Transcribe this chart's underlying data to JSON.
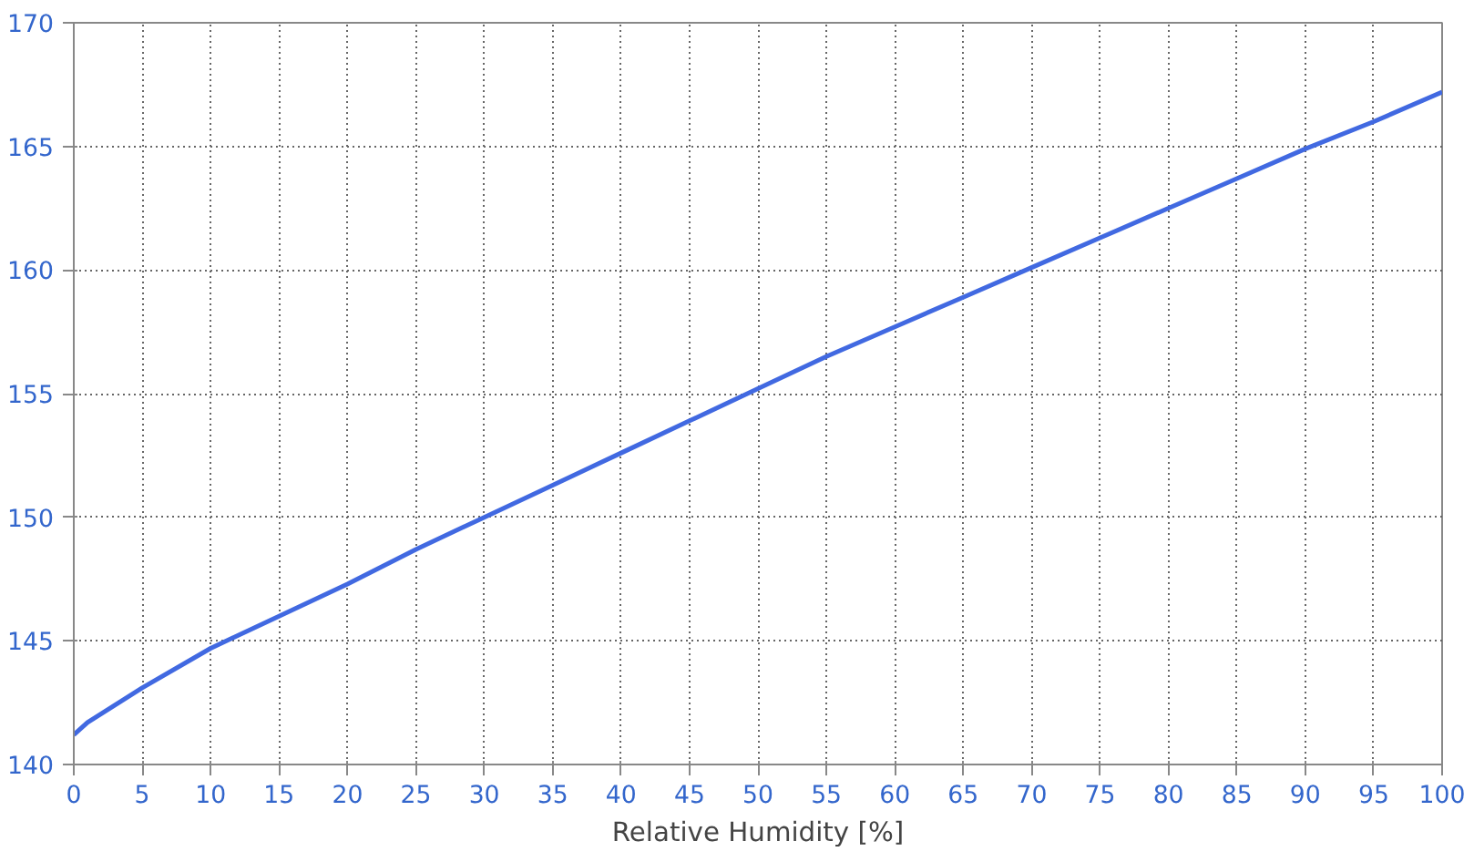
{
  "chart_data": {
    "type": "line",
    "xlabel": "Relative Humidity [%]",
    "x": [
      0,
      1,
      3,
      5,
      10,
      15,
      20,
      25,
      30,
      35,
      40,
      45,
      50,
      55,
      60,
      65,
      70,
      75,
      80,
      85,
      90,
      95,
      100
    ],
    "series": [
      {
        "color": "#4169e1",
        "values": [
          141.2,
          141.7,
          142.4,
          143.1,
          144.7,
          146.0,
          147.3,
          148.7,
          150.0,
          151.3,
          152.6,
          153.9,
          155.2,
          156.5,
          157.7,
          158.9,
          160.1,
          161.3,
          162.5,
          163.7,
          164.9,
          166.0,
          167.2
        ]
      }
    ],
    "xlim": [
      0,
      100
    ],
    "ylim": [
      140,
      170
    ],
    "xticks": [
      0,
      5,
      10,
      15,
      20,
      25,
      30,
      35,
      40,
      45,
      50,
      55,
      60,
      65,
      70,
      75,
      80,
      85,
      90,
      95,
      100
    ],
    "yticks": [
      140,
      145,
      150,
      155,
      160,
      165,
      170
    ],
    "grid": true,
    "line_style": "solid"
  }
}
